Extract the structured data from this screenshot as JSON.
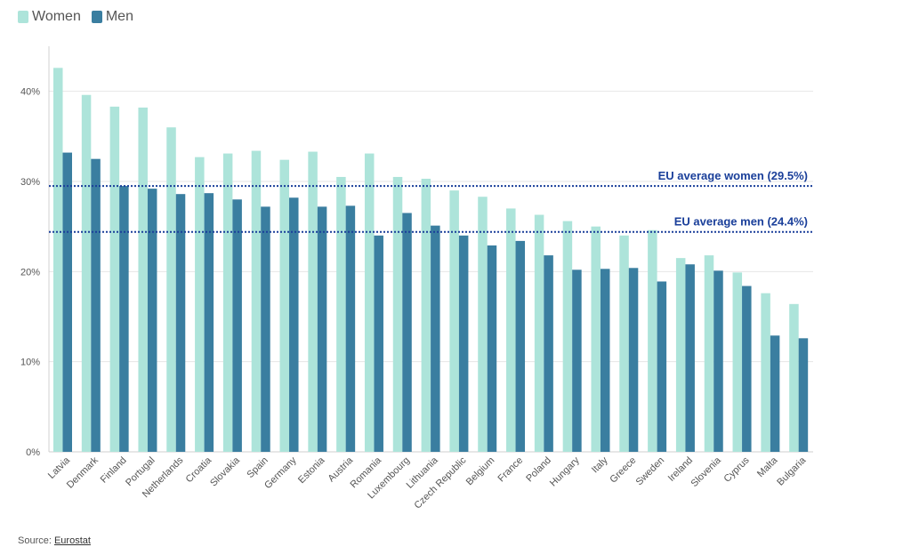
{
  "legend": {
    "women_label": "Women",
    "men_label": "Men"
  },
  "colors": {
    "women": "#ade4da",
    "men": "#3a7ea0",
    "reference_line": "#1a3f9a",
    "grid": "#e6e6e6"
  },
  "source": {
    "prefix": "Source: ",
    "link_text": "Eurostat"
  },
  "chart_data": {
    "type": "bar",
    "title": "",
    "xlabel": "",
    "ylabel": "",
    "ylim": [
      0,
      45
    ],
    "yticks": [
      0,
      10,
      20,
      30,
      40
    ],
    "ytick_labels": [
      "0%",
      "10%",
      "20%",
      "30%",
      "40%"
    ],
    "grid": true,
    "legend_position": "top-left",
    "categories": [
      "Latvia",
      "Denmark",
      "Finland",
      "Portugal",
      "Netherlands",
      "Croatia",
      "Slovakia",
      "Spain",
      "Germany",
      "Estonia",
      "Austria",
      "Romania",
      "Luxembourg",
      "Lithuania",
      "Czech Republic",
      "Belgium",
      "France",
      "Poland",
      "Hungary",
      "Italy",
      "Greece",
      "Sweden",
      "Ireland",
      "Slovenia",
      "Cyprus",
      "Malta",
      "Bulgaria"
    ],
    "series": [
      {
        "name": "Women",
        "values": [
          42.6,
          39.6,
          38.3,
          38.2,
          36.0,
          32.7,
          33.1,
          33.4,
          32.4,
          33.3,
          30.5,
          33.1,
          30.5,
          30.3,
          29.0,
          28.3,
          27.0,
          26.3,
          25.6,
          25.0,
          24.0,
          24.6,
          21.5,
          21.8,
          19.9,
          17.6,
          16.4
        ]
      },
      {
        "name": "Men",
        "values": [
          33.2,
          32.5,
          29.5,
          29.2,
          28.6,
          28.7,
          28.0,
          27.2,
          28.2,
          27.2,
          27.3,
          24.0,
          26.5,
          25.1,
          24.0,
          22.9,
          23.4,
          21.8,
          20.2,
          20.3,
          20.4,
          18.9,
          20.8,
          20.1,
          18.4,
          12.9,
          12.6
        ]
      }
    ],
    "annotations": [
      {
        "label": "EU average women (29.5%)",
        "value": 29.5
      },
      {
        "label": "EU average men (24.4%)",
        "value": 24.4
      }
    ]
  }
}
